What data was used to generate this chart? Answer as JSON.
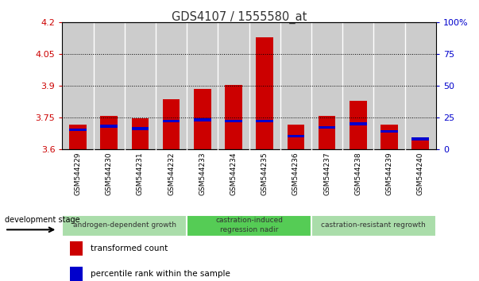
{
  "title": "GDS4107 / 1555580_at",
  "categories": [
    "GSM544229",
    "GSM544230",
    "GSM544231",
    "GSM544232",
    "GSM544233",
    "GSM544234",
    "GSM544235",
    "GSM544236",
    "GSM544237",
    "GSM544238",
    "GSM544239",
    "GSM544240"
  ],
  "red_values": [
    3.715,
    3.755,
    3.745,
    3.835,
    3.885,
    3.905,
    4.13,
    3.715,
    3.755,
    3.83,
    3.715,
    3.655
  ],
  "blue_values": [
    15,
    18,
    16,
    22,
    23,
    22,
    22,
    10,
    17,
    20,
    14,
    8
  ],
  "y_min": 3.6,
  "y_max": 4.2,
  "y_ticks_left": [
    3.6,
    3.75,
    3.9,
    4.05,
    4.2
  ],
  "y_ticks_right": [
    0,
    25,
    50,
    75,
    100
  ],
  "ytick_labels_left": [
    "3.6",
    "3.75",
    "3.9",
    "4.05",
    "4.2"
  ],
  "ytick_labels_right": [
    "0",
    "25",
    "50",
    "75",
    "100%"
  ],
  "left_tick_color": "#cc0000",
  "right_tick_color": "#0000cc",
  "bar_color": "#cc0000",
  "blue_color": "#0000cc",
  "groups": [
    {
      "label": "androgen-dependent growth",
      "start": 0,
      "end": 3,
      "color": "#aaddaa"
    },
    {
      "label": "castration-induced\nregression nadir",
      "start": 4,
      "end": 7,
      "color": "#55cc55"
    },
    {
      "label": "castration-resistant regrowth",
      "start": 8,
      "end": 11,
      "color": "#aaddaa"
    }
  ],
  "legend_items": [
    {
      "label": "transformed count",
      "color": "#cc0000"
    },
    {
      "label": "percentile rank within the sample",
      "color": "#0000cc"
    }
  ],
  "dev_stage_label": "development stage",
  "col_bg": "#cccccc",
  "axis_bg": "#ffffff"
}
